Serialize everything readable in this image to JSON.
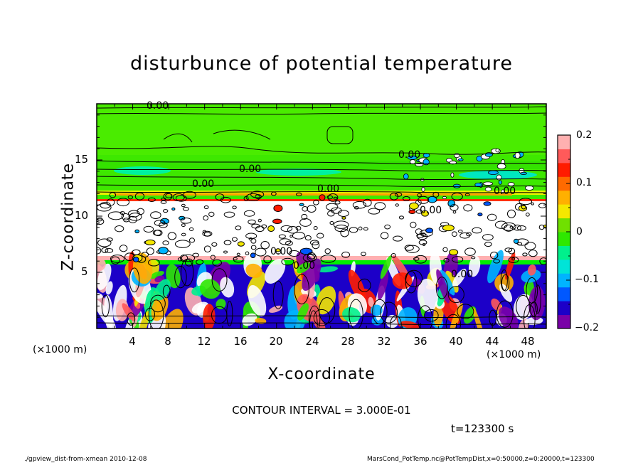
{
  "chart_data": {
    "type": "heatmap",
    "title": "disturbunce of potential temperature",
    "xlabel": "X-coordinate",
    "ylabel": "Z-coordinate",
    "x_unit": "(×1000 m)",
    "y_unit": "(×1000 m)",
    "xlim": [
      0,
      50
    ],
    "ylim": [
      0,
      20
    ],
    "x_ticks": [
      "4",
      "8",
      "12",
      "16",
      "20",
      "24",
      "28",
      "32",
      "36",
      "40",
      "44",
      "48"
    ],
    "y_ticks": [
      "5",
      "10",
      "15"
    ],
    "colorbar": {
      "range": [
        -0.2,
        0.2
      ],
      "tick_labels": [
        "0.2",
        "0.1",
        "0",
        "−0.1",
        "−0.2"
      ],
      "colors": [
        "#7a00a8",
        "#1c00c8",
        "#0058ff",
        "#00b4ff",
        "#00e4d8",
        "#00f08c",
        "#2ee800",
        "#70e000",
        "#f4e800",
        "#ffb000",
        "#ff6a00",
        "#ff1c00",
        "#ff5a5a",
        "#ffb0b0"
      ]
    },
    "contour_labels": [
      "0.00",
      "0.00",
      "0.00",
      "0.00",
      "0.00",
      "0.00",
      "0.00",
      "0.00",
      "0.00",
      "0.00"
    ],
    "contour_interval": "CONTOUR INTERVAL = 3.000E-01",
    "time": "t=123300 s"
  },
  "footer": {
    "left": "./gpview_dist-from-xmean  2010-12-08",
    "right": "MarsCond_PotTemp.nc@PotTempDist,x=0:50000,z=0:20000,t=123300"
  }
}
